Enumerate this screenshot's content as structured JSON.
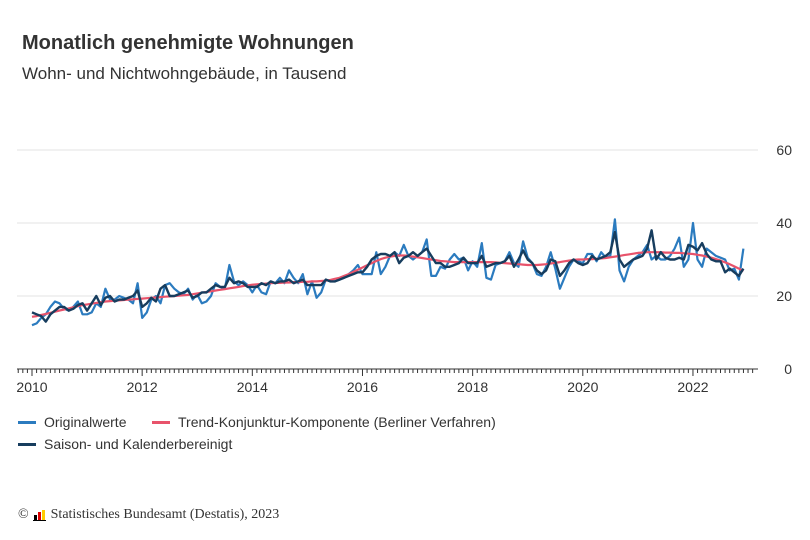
{
  "title": "Monatlich genehmigte Wohnungen",
  "subtitle": "Wohn- und Nichtwohngebäude, in Tausend",
  "footer": {
    "copyright": "©",
    "source": "Statistisches Bundesamt (Destatis), 2023",
    "logo_colors": [
      "#000000",
      "#dd0000",
      "#ffcc00"
    ]
  },
  "chart_data": {
    "type": "line",
    "x_start": "2010-01",
    "x_end": "2022-12",
    "frequency": "monthly",
    "xticks": [
      "2010",
      "2012",
      "2014",
      "2016",
      "2018",
      "2020",
      "2022"
    ],
    "yticks": [
      "0",
      "20",
      "40",
      "60"
    ],
    "ylim": [
      0,
      60
    ],
    "grid": "horizontal",
    "legend_position": "bottom",
    "series": [
      {
        "name": "Originalwerte",
        "color": "#2b7bbf",
        "values": [
          12,
          12.5,
          14,
          15,
          17,
          18.5,
          18,
          16.5,
          16,
          17,
          18.5,
          15,
          15,
          15.5,
          18,
          17,
          22,
          19,
          19,
          20,
          19.5,
          19,
          18,
          23.5,
          14,
          15.5,
          19,
          20,
          18,
          23,
          23.5,
          22,
          21,
          20.5,
          22,
          19,
          20.5,
          18,
          18.5,
          20,
          23.5,
          22.5,
          22,
          28.5,
          24,
          23,
          24,
          23,
          21,
          23,
          21,
          20.5,
          24,
          23.5,
          25,
          23.5,
          27,
          25,
          23.5,
          26,
          20.5,
          24,
          19.5,
          21,
          24.5,
          24,
          24,
          24.5,
          25,
          26,
          27,
          28.5,
          26,
          26,
          26,
          32,
          26,
          28,
          31,
          32,
          31,
          34,
          31,
          30,
          31,
          32,
          35.5,
          25.5,
          25.5,
          28,
          27.5,
          30,
          31.5,
          30,
          30.5,
          27,
          29.5,
          28,
          34.5,
          25,
          24.5,
          28.5,
          29,
          29.5,
          32,
          29,
          28,
          35,
          30.5,
          29,
          26,
          25.5,
          28,
          32,
          27.5,
          22,
          25,
          28,
          30,
          29.5,
          29,
          31.5,
          31.5,
          29.5,
          32,
          30.5,
          31,
          41,
          27,
          24,
          28,
          30,
          31,
          32,
          34,
          30,
          31,
          30,
          30,
          31,
          33,
          36,
          28,
          30,
          40,
          30,
          28,
          33,
          32,
          31,
          30.5,
          30,
          27,
          27.5,
          24.5,
          33
        ]
      },
      {
        "name": "Trend-Konjunktur-Komponente (Berliner Verfahren)",
        "color": "#e8536b",
        "values": [
          14.3,
          14.5,
          14.8,
          15.1,
          15.4,
          15.7,
          16,
          16.3,
          16.6,
          16.9,
          17.2,
          17.5,
          17.7,
          17.9,
          18.1,
          18.3,
          18.5,
          18.6,
          18.7,
          18.8,
          18.9,
          19,
          19.1,
          19.2,
          19.3,
          19.4,
          19.5,
          19.6,
          19.7,
          19.8,
          19.9,
          20,
          20.1,
          20.2,
          20.3,
          20.5,
          20.7,
          20.9,
          21.1,
          21.3,
          21.5,
          21.7,
          21.9,
          22.1,
          22.3,
          22.5,
          22.7,
          22.9,
          23.1,
          23.2,
          23.3,
          23.4,
          23.5,
          23.6,
          23.6,
          23.7,
          23.7,
          23.8,
          23.8,
          23.9,
          23.9,
          24,
          24,
          24.1,
          24.2,
          24.4,
          24.7,
          25,
          25.5,
          26,
          26.6,
          27.2,
          27.8,
          28.4,
          29,
          29.6,
          30.1,
          30.5,
          30.8,
          31,
          31.1,
          31.1,
          31,
          30.8,
          30.6,
          30.4,
          30.2,
          30,
          29.8,
          29.6,
          29.5,
          29.4,
          29.3,
          29.3,
          29.3,
          29.3,
          29.3,
          29.3,
          29.3,
          29.3,
          29.3,
          29.2,
          29.1,
          29,
          28.9,
          28.8,
          28.7,
          28.6,
          28.5,
          28.5,
          28.5,
          28.6,
          28.7,
          28.9,
          29.1,
          29.3,
          29.5,
          29.7,
          29.9,
          30,
          30,
          30.1,
          30.1,
          30.2,
          30.3,
          30.4,
          30.6,
          30.8,
          31,
          31.2,
          31.4,
          31.6,
          31.8,
          31.9,
          32,
          32,
          32,
          32,
          31.9,
          31.9,
          31.8,
          31.8,
          31.7,
          31.6,
          31.5,
          31.3,
          31.1,
          30.8,
          30.5,
          30.1,
          29.7,
          29.2,
          28.7,
          28.1,
          27.5,
          26.8
        ]
      },
      {
        "name": "Saison- und Kalenderbereinigt",
        "color": "#173d5e",
        "values": [
          15.5,
          15,
          14.5,
          13,
          15,
          16,
          17,
          17,
          16,
          16.5,
          17.5,
          18,
          16,
          18,
          20,
          17.5,
          19.5,
          20,
          18.5,
          19,
          19,
          19.5,
          20,
          21.5,
          17,
          18,
          19.5,
          18.5,
          22,
          23,
          20,
          20,
          20.5,
          21,
          21.5,
          19.5,
          20,
          21,
          21,
          22,
          23,
          22.5,
          22.5,
          25,
          23.5,
          24,
          23.5,
          22.5,
          22.5,
          22.5,
          23.5,
          23,
          24,
          23.5,
          24,
          24,
          24.5,
          23.5,
          24,
          24.5,
          23,
          23,
          23,
          23,
          24.5,
          24,
          24,
          24.5,
          25,
          25.5,
          26,
          26.5,
          26.5,
          28,
          30,
          31,
          31.5,
          31.5,
          31,
          32,
          29,
          30.5,
          31,
          32,
          31,
          32,
          33,
          31,
          29,
          29,
          28,
          28,
          28.5,
          29,
          30.5,
          29,
          29,
          29,
          31,
          28,
          28.5,
          29,
          29,
          29.5,
          31,
          28,
          30,
          32.5,
          30,
          29,
          27,
          26,
          27,
          30,
          29.5,
          25.5,
          27,
          29,
          30,
          29,
          28.5,
          29,
          31,
          30,
          30.5,
          31,
          32,
          37.5,
          30,
          28,
          29,
          30,
          30.5,
          31,
          33,
          38,
          30,
          32,
          30.5,
          30,
          30,
          30.5,
          30,
          34,
          33.5,
          32.5,
          34.5,
          31.5,
          30,
          29.5,
          29.5,
          26.5,
          27.5,
          26.5,
          25.5,
          27.5
        ]
      }
    ]
  }
}
